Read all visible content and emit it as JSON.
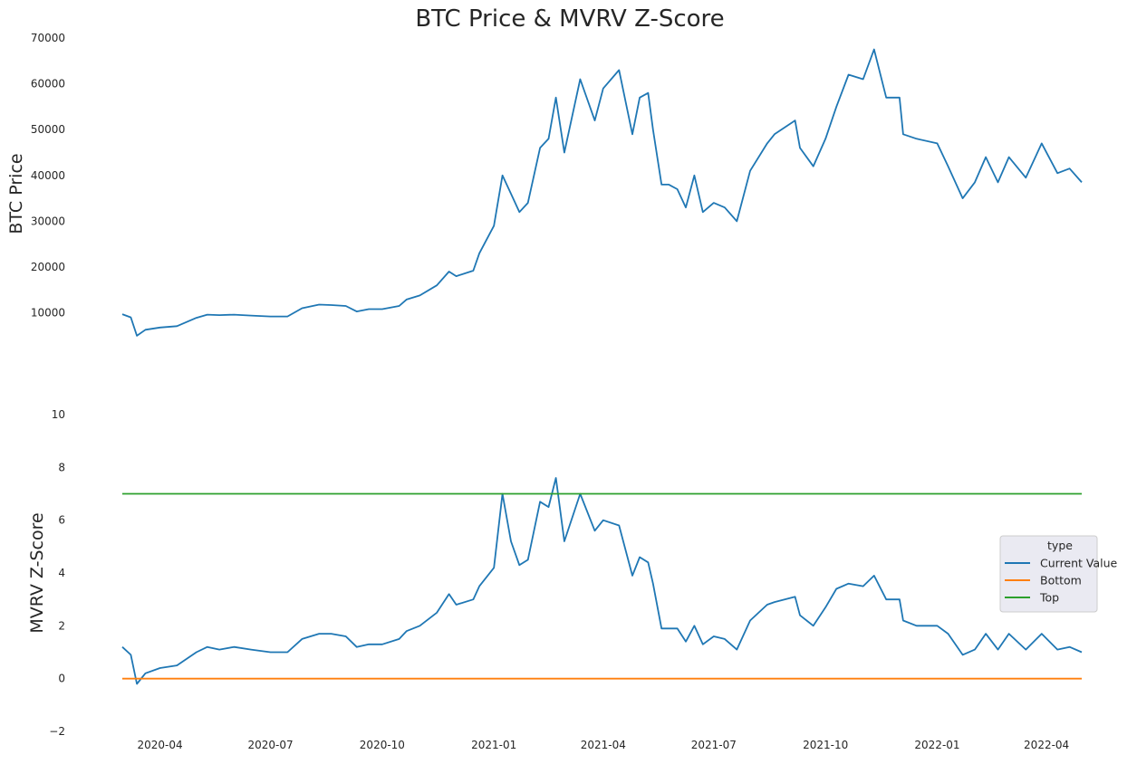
{
  "chart_data": [
    {
      "type": "line",
      "title": "BTC Price & MVRV Z-Score",
      "ylabel": "BTC  Price",
      "ylim": [
        3000,
        70000
      ],
      "yticks": [
        10000,
        20000,
        30000,
        40000,
        50000,
        60000,
        70000
      ],
      "xlim": [
        "2020-03-01",
        "2022-04-30"
      ],
      "grid": false,
      "series": [
        {
          "color": "#1f77b4",
          "x": [
            "2020-03-01",
            "2020-03-08",
            "2020-03-13",
            "2020-03-20",
            "2020-04-01",
            "2020-04-15",
            "2020-05-01",
            "2020-05-10",
            "2020-05-20",
            "2020-06-01",
            "2020-06-15",
            "2020-07-01",
            "2020-07-15",
            "2020-07-27",
            "2020-08-10",
            "2020-08-20",
            "2020-09-01",
            "2020-09-10",
            "2020-09-20",
            "2020-10-01",
            "2020-10-15",
            "2020-10-21",
            "2020-11-01",
            "2020-11-15",
            "2020-11-25",
            "2020-12-01",
            "2020-12-15",
            "2020-12-20",
            "2021-01-01",
            "2021-01-08",
            "2021-01-15",
            "2021-01-22",
            "2021-01-29",
            "2021-02-08",
            "2021-02-15",
            "2021-02-21",
            "2021-02-28",
            "2021-03-13",
            "2021-03-25",
            "2021-04-01",
            "2021-04-14",
            "2021-04-25",
            "2021-05-01",
            "2021-05-08",
            "2021-05-12",
            "2021-05-19",
            "2021-05-25",
            "2021-06-01",
            "2021-06-08",
            "2021-06-15",
            "2021-06-22",
            "2021-07-01",
            "2021-07-10",
            "2021-07-20",
            "2021-07-31",
            "2021-08-14",
            "2021-08-20",
            "2021-09-06",
            "2021-09-10",
            "2021-09-21",
            "2021-10-01",
            "2021-10-10",
            "2021-10-20",
            "2021-11-01",
            "2021-11-10",
            "2021-11-20",
            "2021-12-01",
            "2021-12-04",
            "2021-12-15",
            "2022-01-01",
            "2022-01-10",
            "2022-01-22",
            "2022-02-01",
            "2022-02-10",
            "2022-02-20",
            "2022-03-01",
            "2022-03-15",
            "2022-03-28",
            "2022-04-10",
            "2022-04-20",
            "2022-04-30"
          ],
          "y": [
            9700,
            9000,
            5000,
            6300,
            6800,
            7100,
            8900,
            9600,
            9500,
            9600,
            9400,
            9200,
            9200,
            11000,
            11800,
            11700,
            11500,
            10300,
            10800,
            10800,
            11500,
            12900,
            13800,
            16000,
            19000,
            18000,
            19200,
            23000,
            29000,
            40000,
            36000,
            32000,
            34000,
            46000,
            48000,
            57000,
            45000,
            61000,
            52000,
            59000,
            63000,
            49000,
            57000,
            58000,
            50000,
            38000,
            38000,
            37000,
            33000,
            40000,
            32000,
            34000,
            33000,
            30000,
            41000,
            47000,
            49000,
            52000,
            46000,
            42000,
            48000,
            55000,
            62000,
            61000,
            67500,
            57000,
            57000,
            49000,
            48000,
            47000,
            42000,
            35000,
            38500,
            44000,
            38500,
            44000,
            39500,
            47000,
            40500,
            41500,
            38500
          ]
        }
      ]
    },
    {
      "type": "line",
      "ylabel": "MVRV Z-Score",
      "ylim": [
        -2,
        10
      ],
      "yticks": [
        -2,
        0,
        2,
        4,
        6,
        8,
        10
      ],
      "xlim": [
        "2020-03-01",
        "2022-04-30"
      ],
      "xticks": [
        "2020-04",
        "2020-07",
        "2020-10",
        "2021-01",
        "2021-04",
        "2021-07",
        "2021-10",
        "2022-01",
        "2022-04"
      ],
      "grid": false,
      "legend": {
        "title": "type",
        "placement": "right",
        "entries": [
          "Current Value",
          "Bottom",
          "Top"
        ]
      },
      "series": [
        {
          "name": "Current Value",
          "color": "#1f77b4",
          "x": [
            "2020-03-01",
            "2020-03-08",
            "2020-03-13",
            "2020-03-20",
            "2020-04-01",
            "2020-04-15",
            "2020-05-01",
            "2020-05-10",
            "2020-05-20",
            "2020-06-01",
            "2020-06-15",
            "2020-07-01",
            "2020-07-15",
            "2020-07-27",
            "2020-08-10",
            "2020-08-20",
            "2020-09-01",
            "2020-09-10",
            "2020-09-20",
            "2020-10-01",
            "2020-10-15",
            "2020-10-21",
            "2020-11-01",
            "2020-11-15",
            "2020-11-25",
            "2020-12-01",
            "2020-12-15",
            "2020-12-20",
            "2021-01-01",
            "2021-01-08",
            "2021-01-15",
            "2021-01-22",
            "2021-01-29",
            "2021-02-08",
            "2021-02-15",
            "2021-02-21",
            "2021-02-28",
            "2021-03-13",
            "2021-03-25",
            "2021-04-01",
            "2021-04-14",
            "2021-04-25",
            "2021-05-01",
            "2021-05-08",
            "2021-05-12",
            "2021-05-19",
            "2021-05-25",
            "2021-06-01",
            "2021-06-08",
            "2021-06-15",
            "2021-06-22",
            "2021-07-01",
            "2021-07-10",
            "2021-07-20",
            "2021-07-31",
            "2021-08-14",
            "2021-08-20",
            "2021-09-06",
            "2021-09-10",
            "2021-09-21",
            "2021-10-01",
            "2021-10-10",
            "2021-10-20",
            "2021-11-01",
            "2021-11-10",
            "2021-11-20",
            "2021-12-01",
            "2021-12-04",
            "2021-12-15",
            "2022-01-01",
            "2022-01-10",
            "2022-01-22",
            "2022-02-01",
            "2022-02-10",
            "2022-02-20",
            "2022-03-01",
            "2022-03-15",
            "2022-03-28",
            "2022-04-10",
            "2022-04-20",
            "2022-04-30"
          ],
          "y": [
            1.2,
            0.9,
            -0.2,
            0.2,
            0.4,
            0.5,
            1.0,
            1.2,
            1.1,
            1.2,
            1.1,
            1.0,
            1.0,
            1.5,
            1.7,
            1.7,
            1.6,
            1.2,
            1.3,
            1.3,
            1.5,
            1.8,
            2.0,
            2.5,
            3.2,
            2.8,
            3.0,
            3.5,
            4.2,
            7.0,
            5.2,
            4.3,
            4.5,
            6.7,
            6.5,
            7.6,
            5.2,
            7.0,
            5.6,
            6.0,
            5.8,
            3.9,
            4.6,
            4.4,
            3.6,
            1.9,
            1.9,
            1.9,
            1.4,
            2.0,
            1.3,
            1.6,
            1.5,
            1.1,
            2.2,
            2.8,
            2.9,
            3.1,
            2.4,
            2.0,
            2.7,
            3.4,
            3.6,
            3.5,
            3.9,
            3.0,
            3.0,
            2.2,
            2.0,
            2.0,
            1.7,
            0.9,
            1.1,
            1.7,
            1.1,
            1.7,
            1.1,
            1.7,
            1.1,
            1.2,
            1.0
          ]
        },
        {
          "name": "Bottom",
          "color": "#ff7f0e",
          "x": [
            "2020-03-01",
            "2022-04-30"
          ],
          "y": [
            0,
            0
          ]
        },
        {
          "name": "Top",
          "color": "#2ca02c",
          "x": [
            "2020-03-01",
            "2022-04-30"
          ],
          "y": [
            7,
            7
          ]
        }
      ]
    }
  ]
}
